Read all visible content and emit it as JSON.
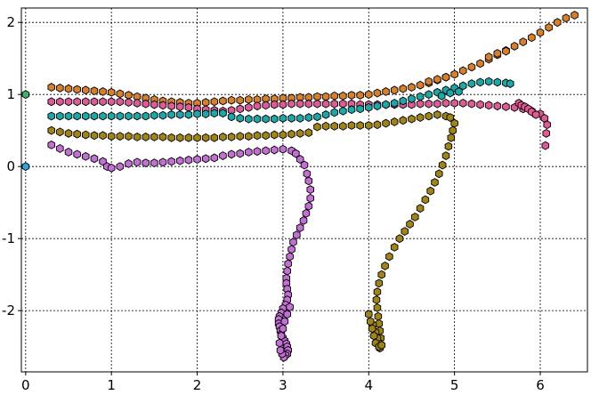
{
  "chart_data": {
    "type": "scatter",
    "title": "",
    "xlabel": "",
    "ylabel": "",
    "xlim": [
      -0.05,
      6.55
    ],
    "ylim": [
      -2.85,
      2.2
    ],
    "xticks": [
      0,
      1,
      2,
      3,
      4,
      5,
      6
    ],
    "yticks": [
      -2,
      -1,
      0,
      1,
      2
    ],
    "xtick_labels": [
      "0",
      "1",
      "2",
      "3",
      "4",
      "5",
      "6"
    ],
    "ytick_labels": [
      "-2",
      "-1",
      "0",
      "1",
      "2"
    ],
    "grid": true,
    "legend": "none",
    "marker": "hexagon",
    "series": [
      {
        "color": "#2ca5e0",
        "x": [
          0
        ],
        "y": [
          0
        ]
      },
      {
        "color": "#3fb26b",
        "x": [
          0
        ],
        "y": [
          1
        ]
      },
      {
        "color": "#d97f2a",
        "x": [
          0.3,
          0.4,
          0.5,
          0.6,
          0.7,
          0.8,
          0.9,
          1.0,
          1.1,
          1.2,
          1.3,
          1.4,
          1.5,
          1.6,
          1.7,
          1.8,
          1.9,
          2.0,
          2.1,
          2.2,
          2.3,
          2.4,
          2.5,
          2.6,
          2.7,
          2.8,
          2.9,
          3.0,
          3.1,
          3.2,
          3.3,
          3.4,
          3.5,
          3.6,
          3.7,
          3.8,
          3.9,
          4.0,
          4.1,
          4.2,
          4.3,
          4.4,
          4.5,
          4.6,
          4.7,
          4.8,
          4.9,
          5.0,
          5.1,
          5.2,
          5.3,
          5.4,
          5.5,
          5.6,
          5.7,
          5.8,
          5.9,
          6.0,
          6.1,
          6.2,
          6.3,
          6.4,
          4.7,
          4.8,
          4.9,
          5.4,
          5.5,
          5.6
        ],
        "y": [
          1.1,
          1.09,
          1.08,
          1.07,
          1.06,
          1.05,
          1.04,
          1.03,
          1.01,
          0.99,
          0.97,
          0.95,
          0.93,
          0.91,
          0.9,
          0.89,
          0.88,
          0.88,
          0.89,
          0.9,
          0.91,
          0.92,
          0.92,
          0.93,
          0.93,
          0.94,
          0.94,
          0.95,
          0.95,
          0.96,
          0.96,
          0.97,
          0.97,
          0.98,
          0.98,
          0.99,
          0.99,
          1.0,
          1.02,
          1.04,
          1.06,
          1.08,
          1.1,
          1.13,
          1.16,
          1.2,
          1.24,
          1.28,
          1.33,
          1.38,
          1.43,
          1.49,
          1.55,
          1.61,
          1.67,
          1.73,
          1.79,
          1.86,
          1.93,
          2.0,
          2.06,
          2.1,
          1.18,
          1.21,
          1.24,
          1.52,
          1.57,
          1.6
        ]
      },
      {
        "color": "#e05b96",
        "x": [
          0.3,
          0.4,
          0.5,
          0.6,
          0.7,
          0.8,
          0.9,
          1.0,
          1.1,
          1.2,
          1.3,
          1.4,
          1.5,
          1.6,
          1.7,
          1.8,
          1.9,
          2.0,
          2.1,
          2.2,
          2.3,
          2.4,
          2.5,
          2.6,
          2.7,
          2.8,
          2.9,
          3.0,
          3.1,
          3.2,
          3.3,
          3.4,
          3.5,
          3.6,
          3.7,
          3.8,
          3.9,
          4.0,
          4.1,
          4.2,
          4.3,
          4.4,
          4.5,
          4.6,
          4.7,
          4.8,
          4.9,
          5.0,
          5.1,
          5.2,
          5.3,
          5.4,
          5.5,
          5.6,
          5.7,
          5.8,
          5.9,
          6.0,
          6.05,
          6.08,
          6.07,
          6.06,
          5.75,
          5.78,
          5.82,
          5.86,
          5.9,
          5.95
        ],
        "y": [
          0.9,
          0.9,
          0.9,
          0.9,
          0.9,
          0.9,
          0.9,
          0.9,
          0.9,
          0.89,
          0.88,
          0.87,
          0.86,
          0.85,
          0.84,
          0.83,
          0.82,
          0.8,
          0.79,
          0.78,
          0.77,
          0.78,
          0.8,
          0.82,
          0.84,
          0.85,
          0.86,
          0.86,
          0.87,
          0.87,
          0.87,
          0.87,
          0.87,
          0.87,
          0.87,
          0.87,
          0.86,
          0.86,
          0.86,
          0.86,
          0.86,
          0.86,
          0.86,
          0.87,
          0.87,
          0.87,
          0.88,
          0.88,
          0.88,
          0.87,
          0.86,
          0.85,
          0.84,
          0.83,
          0.82,
          0.8,
          0.77,
          0.73,
          0.67,
          0.58,
          0.46,
          0.29,
          0.88,
          0.85,
          0.83,
          0.8,
          0.76,
          0.72
        ]
      },
      {
        "color": "#1aa8a8",
        "x": [
          0.3,
          0.4,
          0.5,
          0.6,
          0.7,
          0.8,
          0.9,
          1.0,
          1.1,
          1.2,
          1.3,
          1.4,
          1.5,
          1.6,
          1.7,
          1.8,
          1.9,
          2.0,
          2.1,
          2.2,
          2.3,
          2.4,
          2.5,
          2.6,
          2.7,
          2.8,
          2.9,
          3.0,
          3.1,
          3.2,
          3.3,
          3.4,
          3.5,
          3.6,
          3.7,
          3.8,
          3.9,
          4.0,
          4.1,
          4.2,
          4.3,
          4.4,
          4.5,
          4.6,
          4.7,
          4.8,
          4.9,
          5.0,
          5.1,
          5.2,
          5.3,
          5.4,
          5.5,
          5.6,
          5.65,
          4.85,
          4.95,
          5.05
        ],
        "y": [
          0.7,
          0.7,
          0.7,
          0.7,
          0.7,
          0.7,
          0.7,
          0.7,
          0.7,
          0.7,
          0.7,
          0.7,
          0.71,
          0.71,
          0.72,
          0.72,
          0.72,
          0.73,
          0.73,
          0.74,
          0.74,
          0.69,
          0.67,
          0.66,
          0.66,
          0.66,
          0.66,
          0.67,
          0.67,
          0.67,
          0.68,
          0.69,
          0.72,
          0.75,
          0.77,
          0.79,
          0.8,
          0.82,
          0.84,
          0.86,
          0.88,
          0.91,
          0.94,
          0.97,
          1.0,
          1.03,
          1.06,
          1.09,
          1.12,
          1.15,
          1.17,
          1.18,
          1.17,
          1.16,
          1.15,
          0.98,
          1.02,
          1.04
        ]
      },
      {
        "color": "#a08514",
        "x": [
          0.3,
          0.4,
          0.5,
          0.6,
          0.7,
          0.8,
          0.9,
          1.0,
          1.1,
          1.2,
          1.3,
          1.4,
          1.5,
          1.6,
          1.7,
          1.8,
          1.9,
          2.0,
          2.1,
          2.2,
          2.3,
          2.4,
          2.5,
          2.6,
          2.7,
          2.8,
          2.9,
          3.0,
          3.1,
          3.2,
          3.3,
          3.4,
          3.5,
          3.6,
          3.7,
          3.8,
          3.9,
          4.0,
          4.1,
          4.2,
          4.3,
          4.4,
          4.5,
          4.6,
          4.7,
          4.8,
          4.9,
          4.95,
          5.0,
          4.98,
          4.96,
          4.93,
          4.9,
          4.86,
          4.82,
          4.77,
          4.72,
          4.66,
          4.6,
          4.54,
          4.48,
          4.42,
          4.36,
          4.3,
          4.24,
          4.19,
          4.15,
          4.12,
          4.1,
          4.09,
          4.1,
          4.11,
          4.12,
          4.13,
          4.14,
          4.14,
          4.13,
          4.12,
          4.1,
          4.08,
          4.05,
          4.0,
          4.02,
          4.04,
          4.06,
          4.08,
          4.12,
          4.15
        ],
        "y": [
          0.5,
          0.48,
          0.46,
          0.45,
          0.44,
          0.43,
          0.43,
          0.42,
          0.42,
          0.42,
          0.41,
          0.41,
          0.41,
          0.41,
          0.4,
          0.4,
          0.4,
          0.4,
          0.4,
          0.4,
          0.41,
          0.41,
          0.42,
          0.42,
          0.43,
          0.43,
          0.44,
          0.44,
          0.45,
          0.46,
          0.47,
          0.55,
          0.56,
          0.56,
          0.56,
          0.57,
          0.57,
          0.57,
          0.58,
          0.6,
          0.62,
          0.64,
          0.66,
          0.68,
          0.7,
          0.72,
          0.7,
          0.68,
          0.6,
          0.5,
          0.4,
          0.28,
          0.15,
          0.02,
          -0.1,
          -0.22,
          -0.34,
          -0.46,
          -0.58,
          -0.7,
          -0.8,
          -0.9,
          -1.0,
          -1.12,
          -1.25,
          -1.38,
          -1.5,
          -1.62,
          -1.74,
          -1.85,
          -1.96,
          -2.08,
          -2.18,
          -2.28,
          -2.38,
          -2.47,
          -2.52,
          -2.45,
          -2.38,
          -2.3,
          -2.2,
          -2.05,
          -2.15,
          -2.25,
          -2.35,
          -2.45,
          -2.5,
          -2.48
        ]
      },
      {
        "color": "#c46ed6",
        "x": [
          0.3,
          0.4,
          0.5,
          0.6,
          0.7,
          0.8,
          0.9,
          0.95,
          1.0,
          1.1,
          1.2,
          1.3,
          1.4,
          1.5,
          1.6,
          1.7,
          1.8,
          1.9,
          2.0,
          2.1,
          2.2,
          2.3,
          2.4,
          2.5,
          2.6,
          2.7,
          2.8,
          2.9,
          3.0,
          3.1,
          3.15,
          3.2,
          3.25,
          3.28,
          3.3,
          3.32,
          3.32,
          3.3,
          3.27,
          3.24,
          3.2,
          3.16,
          3.12,
          3.1,
          3.08,
          3.06,
          3.05,
          3.04,
          3.04,
          3.05,
          3.06,
          3.05,
          3.03,
          3.0,
          2.98,
          2.96,
          2.95,
          2.95,
          2.96,
          2.97,
          2.98,
          3.0,
          3.02,
          3.04,
          3.05,
          3.06,
          3.05,
          3.03,
          3.01,
          2.99,
          2.97,
          2.96,
          2.98,
          3.0,
          3.02,
          3.05,
          3.08
        ],
        "y": [
          0.3,
          0.25,
          0.2,
          0.17,
          0.14,
          0.11,
          0.07,
          0.0,
          -0.02,
          0.0,
          0.04,
          0.06,
          0.05,
          0.05,
          0.06,
          0.07,
          0.08,
          0.09,
          0.1,
          0.11,
          0.12,
          0.15,
          0.17,
          0.18,
          0.2,
          0.21,
          0.22,
          0.23,
          0.24,
          0.22,
          0.18,
          0.1,
          0.02,
          -0.1,
          -0.2,
          -0.32,
          -0.44,
          -0.55,
          -0.65,
          -0.75,
          -0.85,
          -0.95,
          -1.05,
          -1.15,
          -1.25,
          -1.35,
          -1.45,
          -1.55,
          -1.62,
          -1.7,
          -1.78,
          -1.85,
          -1.92,
          -1.97,
          -2.03,
          -2.08,
          -2.12,
          -2.18,
          -2.22,
          -2.28,
          -2.33,
          -2.38,
          -2.42,
          -2.46,
          -2.5,
          -2.55,
          -2.6,
          -2.62,
          -2.65,
          -2.6,
          -2.55,
          -2.45,
          -2.35,
          -2.25,
          -2.15,
          -2.05,
          -1.95
        ]
      }
    ]
  }
}
